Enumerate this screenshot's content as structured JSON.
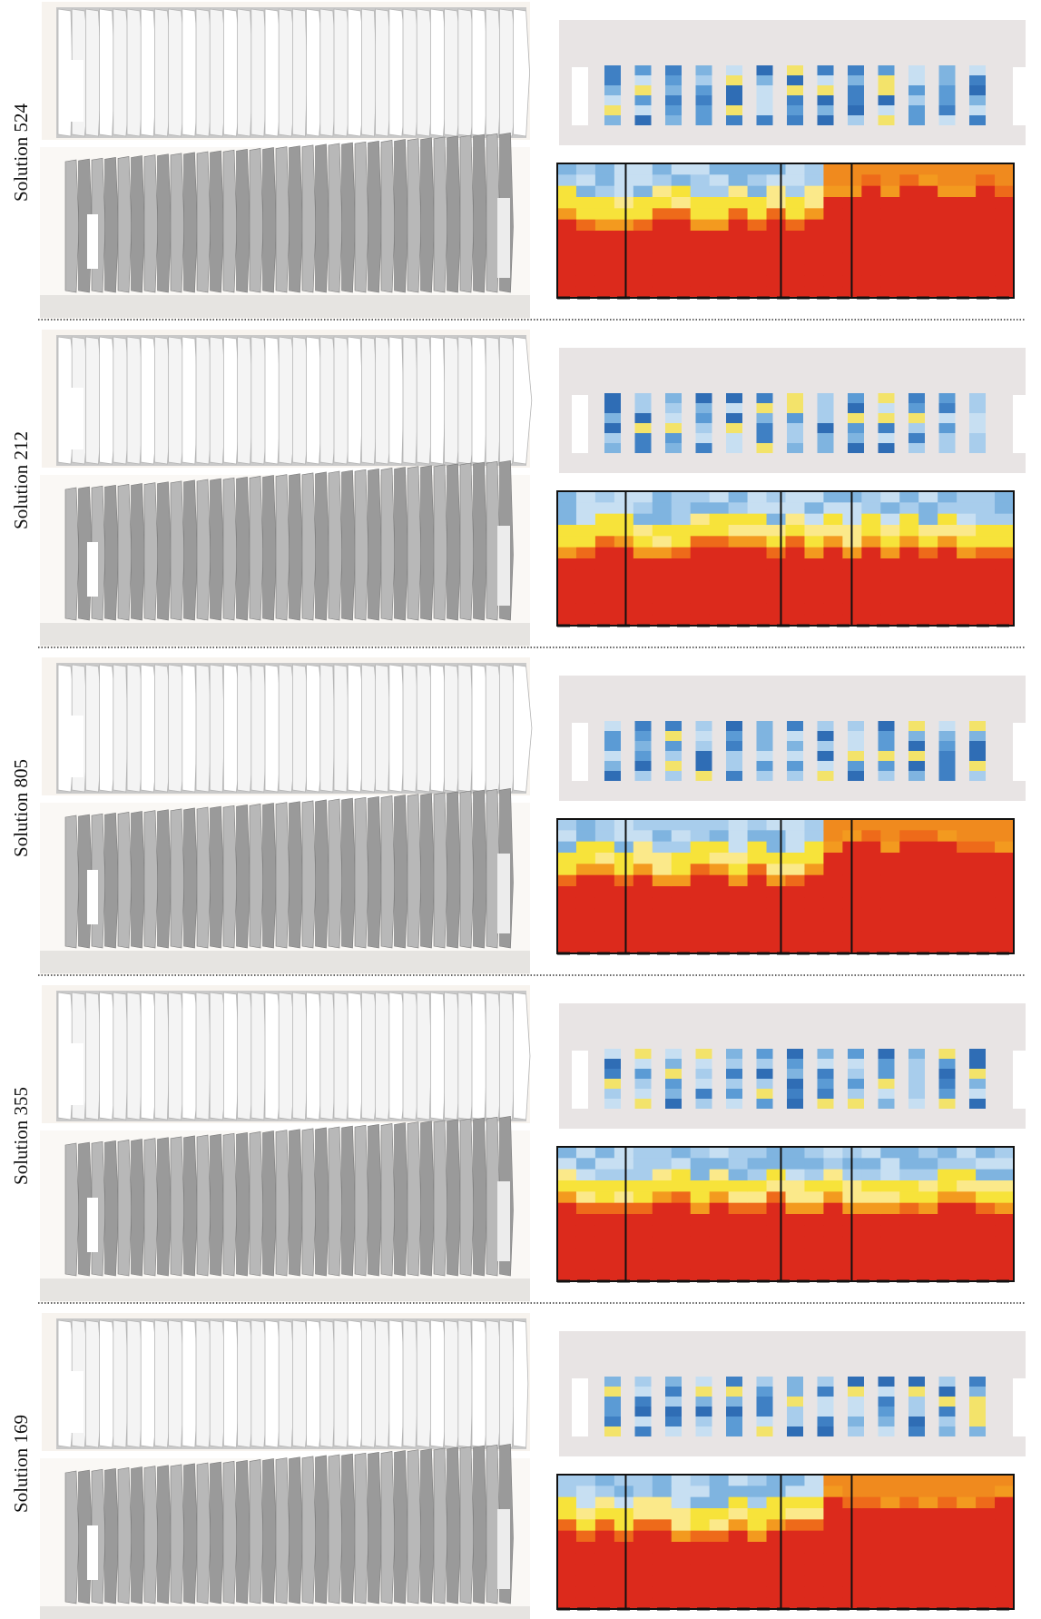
{
  "rows": [
    {
      "label": "Solution 524"
    },
    {
      "label": "Solution 212"
    },
    {
      "label": "Solution 805"
    },
    {
      "label": "Solution 355"
    },
    {
      "label": "Solution 169"
    }
  ]
}
